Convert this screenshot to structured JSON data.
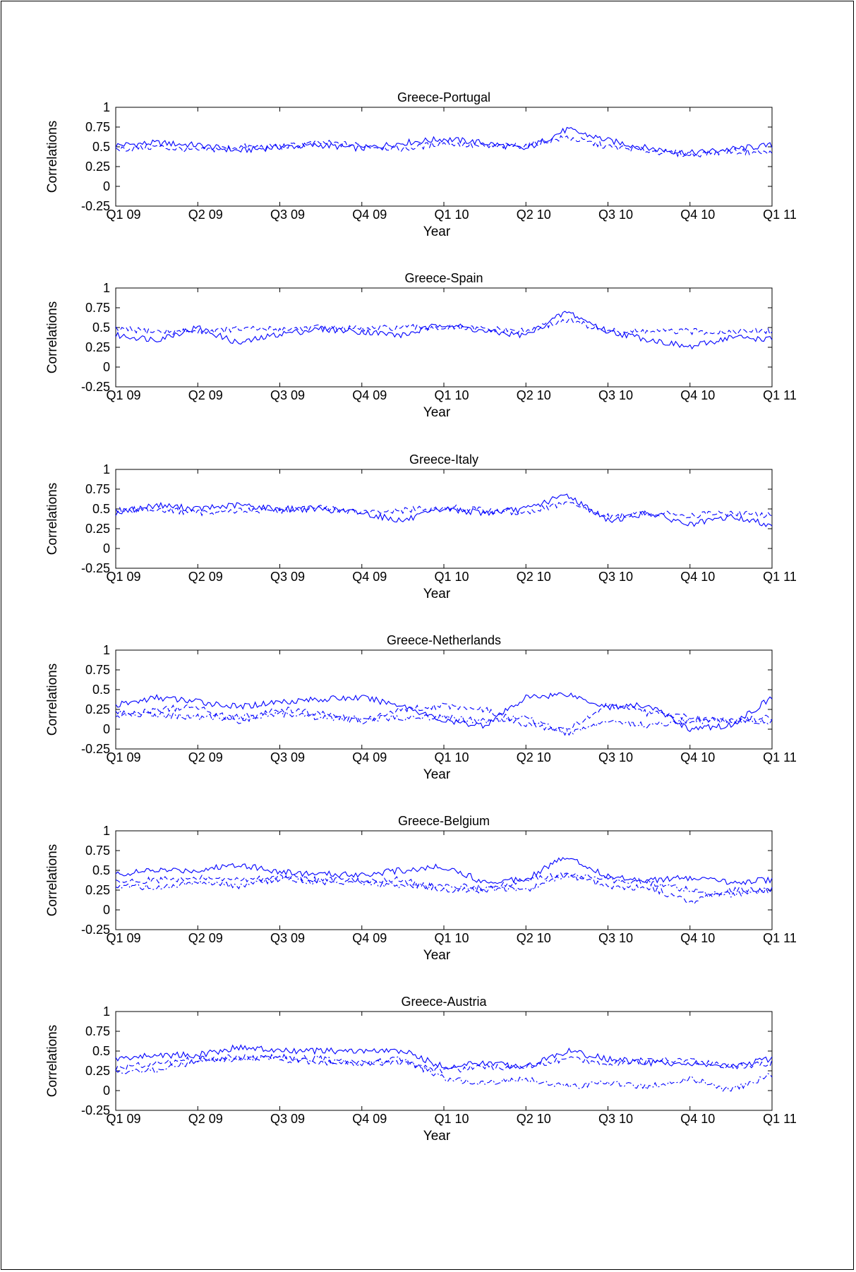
{
  "series_color": "#0000ff",
  "axis_common": {
    "ylabel": "Correlations",
    "xlabel": "Year",
    "ylim": [
      -0.25,
      1
    ],
    "yticks": [
      "-0.25",
      "0",
      "0.25",
      "0.5",
      "0.75",
      "1"
    ],
    "ytick_values": [
      -0.25,
      0,
      0.25,
      0.5,
      0.75,
      1
    ],
    "xlim": [
      0,
      8
    ],
    "xticks": [
      "Q1 09",
      "Q2 09",
      "Q3 09",
      "Q4 09",
      "Q1 10",
      "Q2 10",
      "Q3 10",
      "Q4 10",
      "Q1 11"
    ],
    "xtick_values": [
      0,
      1,
      2,
      3,
      4,
      5,
      6,
      7,
      8
    ]
  },
  "chart_data": [
    {
      "type": "line",
      "title": "Greece-Portugal",
      "xlabel": "Year",
      "ylabel": "Correlations",
      "ylim": [
        -0.25,
        1
      ],
      "x": [
        0,
        0.5,
        1,
        1.5,
        2,
        2.5,
        3,
        3.5,
        4,
        4.5,
        5,
        5.5,
        6,
        6.5,
        7,
        7.5,
        8
      ],
      "series": [
        {
          "style": "solid",
          "values": [
            0.52,
            0.55,
            0.52,
            0.45,
            0.5,
            0.52,
            0.48,
            0.55,
            0.6,
            0.55,
            0.47,
            0.72,
            0.58,
            0.48,
            0.42,
            0.47,
            0.52
          ]
        },
        {
          "style": "dashed",
          "values": [
            0.47,
            0.5,
            0.45,
            0.5,
            0.5,
            0.55,
            0.52,
            0.47,
            0.55,
            0.5,
            0.52,
            0.62,
            0.5,
            0.45,
            0.4,
            0.45,
            0.42
          ]
        }
      ]
    },
    {
      "type": "line",
      "title": "Greece-Spain",
      "xlabel": "Year",
      "ylabel": "Correlations",
      "ylim": [
        -0.25,
        1
      ],
      "x": [
        0,
        0.5,
        1,
        1.5,
        2,
        2.5,
        3,
        3.5,
        4,
        4.5,
        5,
        5.5,
        6,
        6.5,
        7,
        7.5,
        8
      ],
      "series": [
        {
          "style": "solid",
          "values": [
            0.4,
            0.35,
            0.5,
            0.3,
            0.42,
            0.48,
            0.45,
            0.4,
            0.55,
            0.45,
            0.4,
            0.7,
            0.45,
            0.35,
            0.25,
            0.38,
            0.35
          ]
        },
        {
          "style": "dashed",
          "values": [
            0.48,
            0.45,
            0.45,
            0.48,
            0.48,
            0.5,
            0.48,
            0.5,
            0.5,
            0.48,
            0.45,
            0.6,
            0.45,
            0.45,
            0.45,
            0.45,
            0.45
          ]
        }
      ]
    },
    {
      "type": "line",
      "title": "Greece-Italy",
      "xlabel": "Year",
      "ylabel": "Correlations",
      "ylim": [
        -0.25,
        1
      ],
      "x": [
        0,
        0.5,
        1,
        1.5,
        2,
        2.5,
        3,
        3.5,
        4,
        4.5,
        5,
        5.5,
        6,
        6.5,
        7,
        7.5,
        8
      ],
      "series": [
        {
          "style": "solid",
          "values": [
            0.45,
            0.55,
            0.5,
            0.55,
            0.5,
            0.5,
            0.45,
            0.35,
            0.5,
            0.45,
            0.5,
            0.68,
            0.35,
            0.45,
            0.3,
            0.4,
            0.3
          ]
        },
        {
          "style": "dashed",
          "values": [
            0.48,
            0.5,
            0.45,
            0.48,
            0.48,
            0.52,
            0.45,
            0.48,
            0.52,
            0.48,
            0.45,
            0.58,
            0.4,
            0.45,
            0.42,
            0.45,
            0.42
          ]
        }
      ]
    },
    {
      "type": "line",
      "title": "Greece-Netherlands",
      "xlabel": "Year",
      "ylabel": "Correlations",
      "ylim": [
        -0.25,
        1
      ],
      "x": [
        0,
        0.5,
        1,
        1.5,
        2,
        2.5,
        3,
        3.5,
        4,
        4.5,
        5,
        5.5,
        6,
        6.5,
        7,
        7.5,
        8
      ],
      "series": [
        {
          "style": "solid",
          "values": [
            0.3,
            0.4,
            0.35,
            0.28,
            0.35,
            0.38,
            0.4,
            0.3,
            0.1,
            0.05,
            0.4,
            0.45,
            0.28,
            0.3,
            0.0,
            0.05,
            0.4
          ]
        },
        {
          "style": "dashed",
          "values": [
            0.15,
            0.25,
            0.28,
            0.1,
            0.25,
            0.2,
            0.1,
            0.25,
            0.3,
            0.25,
            0.05,
            0.0,
            0.3,
            0.2,
            0.15,
            0.1,
            0.15
          ]
        },
        {
          "style": "dashdot",
          "values": [
            0.2,
            0.18,
            0.15,
            0.15,
            0.2,
            0.15,
            0.12,
            0.15,
            0.15,
            0.1,
            0.15,
            -0.05,
            0.1,
            0.05,
            0.1,
            0.12,
            0.1
          ]
        }
      ]
    },
    {
      "type": "line",
      "title": "Greece-Belgium",
      "xlabel": "Year",
      "ylabel": "Correlations",
      "ylim": [
        -0.25,
        1
      ],
      "x": [
        0,
        0.5,
        1,
        1.5,
        2,
        2.5,
        3,
        3.5,
        4,
        4.5,
        5,
        5.5,
        6,
        6.5,
        7,
        7.5,
        8
      ],
      "series": [
        {
          "style": "solid",
          "values": [
            0.45,
            0.5,
            0.5,
            0.58,
            0.48,
            0.45,
            0.45,
            0.5,
            0.55,
            0.35,
            0.4,
            0.68,
            0.42,
            0.38,
            0.4,
            0.35,
            0.38
          ]
        },
        {
          "style": "dashed",
          "values": [
            0.35,
            0.38,
            0.4,
            0.38,
            0.42,
            0.38,
            0.38,
            0.38,
            0.25,
            0.25,
            0.38,
            0.45,
            0.3,
            0.28,
            0.1,
            0.25,
            0.25
          ]
        },
        {
          "style": "dashdot",
          "values": [
            0.3,
            0.28,
            0.35,
            0.3,
            0.4,
            0.35,
            0.35,
            0.3,
            0.3,
            0.28,
            0.25,
            0.45,
            0.38,
            0.35,
            0.25,
            0.2,
            0.25
          ]
        }
      ]
    },
    {
      "type": "line",
      "title": "Greece-Austria",
      "xlabel": "Year",
      "ylabel": "Correlations",
      "ylim": [
        -0.25,
        1
      ],
      "x": [
        0,
        0.5,
        1,
        1.5,
        2,
        2.5,
        3,
        3.5,
        4,
        4.5,
        5,
        5.5,
        6,
        6.5,
        7,
        7.5,
        8
      ],
      "series": [
        {
          "style": "solid",
          "values": [
            0.4,
            0.45,
            0.45,
            0.55,
            0.5,
            0.5,
            0.5,
            0.5,
            0.3,
            0.35,
            0.3,
            0.5,
            0.4,
            0.35,
            0.35,
            0.3,
            0.4
          ]
        },
        {
          "style": "dashed",
          "values": [
            0.28,
            0.35,
            0.4,
            0.42,
            0.4,
            0.35,
            0.35,
            0.35,
            0.25,
            0.3,
            0.3,
            0.4,
            0.35,
            0.38,
            0.38,
            0.3,
            0.35
          ]
        },
        {
          "style": "dashdot",
          "values": [
            0.25,
            0.25,
            0.38,
            0.4,
            0.42,
            0.4,
            0.35,
            0.4,
            0.15,
            0.1,
            0.15,
            0.05,
            0.1,
            0.05,
            0.15,
            0.0,
            0.2
          ]
        }
      ]
    }
  ]
}
